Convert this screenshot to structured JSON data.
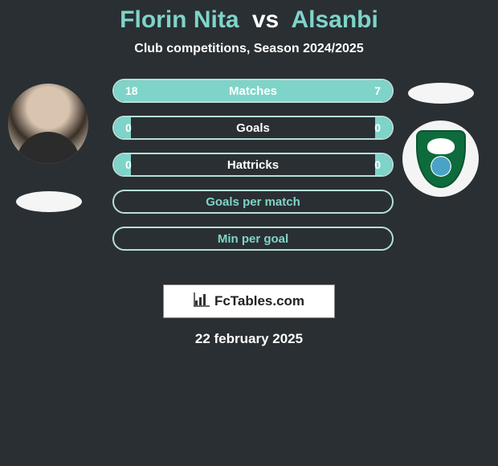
{
  "title": {
    "player1": "Florin Nita",
    "vs": "vs",
    "player2": "Alsanbi",
    "player1_color": "#7fd4c9",
    "player2_color": "#7fd4c9",
    "vs_color": "#ffffff",
    "fontsize": 30
  },
  "subtitle": {
    "text": "Club competitions, Season 2024/2025",
    "color": "#ffffff",
    "fontsize": 16
  },
  "background_color": "#2a2f33",
  "bar_style": {
    "fill_color": "#7fd4c9",
    "border_color": "#b5e0d8",
    "label_color_on_fill": "#ffffff",
    "label_color_on_empty": "#7fd4c9",
    "value_color": "#ffffff",
    "height": 30,
    "border_radius": 16,
    "fontsize": 15
  },
  "stats": [
    {
      "label": "Matches",
      "left_value": "18",
      "right_value": "7",
      "left_pct": 72,
      "right_pct": 28,
      "type": "split"
    },
    {
      "label": "Goals",
      "left_value": "0",
      "right_value": "0",
      "left_pct": 6,
      "right_pct": 6,
      "type": "split"
    },
    {
      "label": "Hattricks",
      "left_value": "0",
      "right_value": "0",
      "left_pct": 6,
      "right_pct": 6,
      "type": "split"
    },
    {
      "label": "Goals per match",
      "type": "empty"
    },
    {
      "label": "Min per goal",
      "type": "empty"
    }
  ],
  "players": {
    "left": {
      "avatar_type": "photo",
      "flag_color": "#f5f5f5"
    },
    "right": {
      "avatar_type": "crest",
      "crest_bg": "#0e6b3c",
      "crest_globe": "#4aa3c7",
      "flag_color": "#f5f5f5"
    }
  },
  "footer": {
    "logo_text": "FcTables.com",
    "logo_bg": "#ffffff",
    "logo_text_color": "#222222",
    "icon_name": "bar-chart-icon"
  },
  "date": {
    "text": "22 february 2025",
    "color": "#ffffff",
    "fontsize": 17
  }
}
